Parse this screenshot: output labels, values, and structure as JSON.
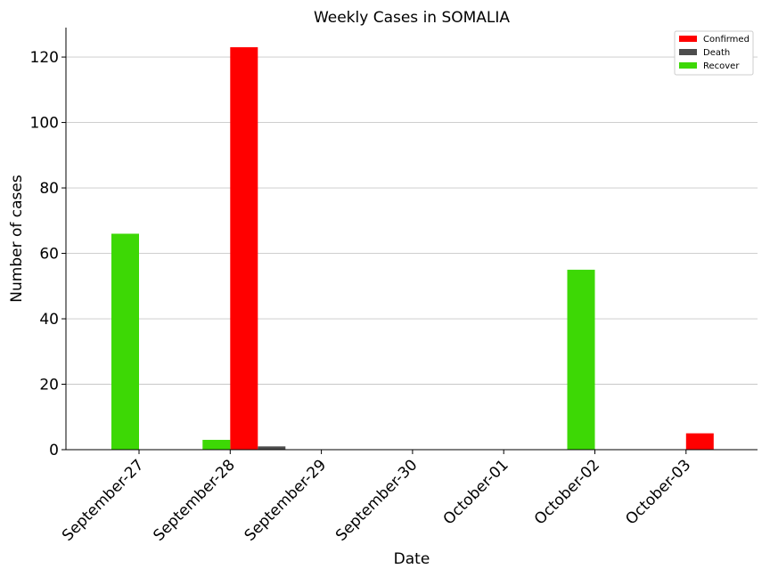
{
  "chart_data": {
    "type": "bar",
    "title": "Weekly Cases in SOMALIA",
    "xlabel": "Date",
    "ylabel": "Number of cases",
    "categories": [
      "September-27",
      "September-28",
      "September-29",
      "September-30",
      "October-01",
      "October-02",
      "October-03"
    ],
    "ylim": [
      0,
      129
    ],
    "yticks": [
      0,
      20,
      40,
      60,
      80,
      100,
      120
    ],
    "grid": "horizontal",
    "legend_position": "top-right",
    "series": [
      {
        "name": "Confirmed",
        "color": "#ff0000",
        "values": [
          0,
          123,
          0,
          0,
          0,
          0,
          5
        ]
      },
      {
        "name": "Death",
        "color": "#4d4d4d",
        "values": [
          0,
          1,
          0,
          0,
          0,
          0,
          0
        ]
      },
      {
        "name": "Recover",
        "color": "#3dd805",
        "values": [
          66,
          3,
          0,
          0,
          0,
          55,
          0
        ]
      }
    ]
  }
}
